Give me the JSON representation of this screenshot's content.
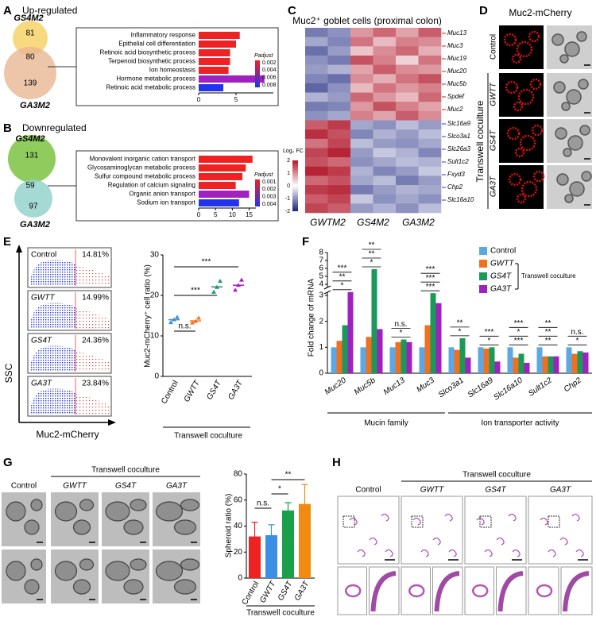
{
  "figure_labels": [
    "A",
    "B",
    "C",
    "D",
    "E",
    "F",
    "G",
    "H"
  ],
  "panel_a": {
    "title": "Up-regulated",
    "venn": {
      "sets": [
        "GS4M2",
        "GA3M2"
      ],
      "counts": [
        81,
        80,
        139
      ]
    }
  },
  "panel_b": {
    "title": "Downregulated",
    "venn": {
      "sets": [
        "GS4M2",
        "GA3M2"
      ],
      "counts": [
        131,
        59,
        97
      ]
    }
  },
  "panel_d": {
    "title": "Muc2-mCherry",
    "rows": [
      "Control",
      "GWTT",
      "GS4T",
      "GA3T"
    ],
    "group": "Transwell coculture"
  },
  "panel_e_flow": {
    "rows": [
      "Control",
      "GWTT",
      "GS4T",
      "GA3T"
    ],
    "percents": [
      "14.81%",
      "14.99%",
      "24.36%",
      "23.84%"
    ],
    "y_label": "SSC",
    "x_label": "Muc2-mCherry"
  },
  "panel_g_images": {
    "columns": [
      "Control",
      "GWTT",
      "GS4T",
      "GA3T"
    ],
    "group": "Transwell coculture"
  },
  "panel_h": {
    "columns": [
      "Control",
      "GWTT",
      "GS4T",
      "GA3T"
    ],
    "group": "Transwell coculture"
  },
  "chart_data": [
    {
      "type": "barh",
      "categories": [
        "Inflammatory response",
        "Epithelial cell differentiation",
        "Retinoic acid biosynthetic process",
        "Terpenoid biosynthetic process",
        "Ion homeostasis",
        "Hormone metabolic process",
        "Retinoic acid metabolic process"
      ],
      "values": [
        5.5,
        5,
        4.2,
        4.2,
        4,
        8.8,
        3.3
      ],
      "colors": [
        "#ee2222",
        "#ee2222",
        "#ee2222",
        "#ee2222",
        "#ee2222",
        "#a020c0",
        "#2233ee"
      ],
      "xlim": [
        0,
        10
      ],
      "xticks": [
        0,
        5
      ],
      "legend_title": "Padjust",
      "legend_ticks": [
        0.002,
        0.004,
        0.006,
        0.008
      ],
      "legend_colors": [
        "#ee2222",
        "#2233ee"
      ]
    },
    {
      "type": "barh",
      "categories": [
        "Monovalent inorganic cation transport",
        "Glycosaminoglycan metabolic process",
        "Sulfur compound metabolic process",
        "Regulation of calcium signaling",
        "Organic anion transport",
        "Sodium ion transport"
      ],
      "values": [
        16,
        14,
        13,
        11,
        15,
        12
      ],
      "colors": [
        "#ee2222",
        "#ee2222",
        "#ee2222",
        "#ee2222",
        "#a020c0",
        "#2233ee"
      ],
      "xlim": [
        0,
        17
      ],
      "xticks": [
        0,
        5,
        10,
        15
      ],
      "legend_title": "Padjust",
      "legend_ticks": [
        0.001,
        0.002,
        0.003,
        0.004
      ],
      "legend_colors": [
        "#ee2222",
        "#2233ee"
      ]
    },
    {
      "type": "heatmap",
      "title": "Muc2⁺ goblet cells (proximal colon)",
      "columns": [
        "GWTM2",
        "GS4M2",
        "GA3M2"
      ],
      "values": [
        [
          -1.2,
          -1.0,
          0.9,
          1.3,
          0.8,
          1.4
        ],
        [
          -0.8,
          -1.1,
          1.2,
          0.6,
          1.1,
          1.0
        ],
        [
          -1.3,
          -0.9,
          0.5,
          1.0,
          1.3,
          0.7
        ],
        [
          -1.0,
          -1.2,
          1.5,
          1.1,
          0.4,
          1.2
        ],
        [
          -0.9,
          -0.7,
          0.8,
          1.4,
          1.0,
          0.9
        ],
        [
          -1.1,
          -1.3,
          1.0,
          0.7,
          1.2,
          1.5
        ],
        [
          -1.4,
          -1.0,
          0.6,
          1.2,
          0.9,
          1.1
        ],
        [
          -0.7,
          -0.9,
          1.3,
          0.9,
          0.6,
          1.3
        ],
        [
          -1.2,
          -1.1,
          0.9,
          1.5,
          1.1,
          0.8
        ],
        [
          -1.0,
          -0.8,
          1.1,
          0.8,
          1.4,
          1.0
        ],
        [
          1.4,
          1.7,
          -0.8,
          -1.0,
          -0.6,
          -0.9
        ],
        [
          1.8,
          1.5,
          -1.1,
          -0.7,
          -0.9,
          -0.6
        ],
        [
          1.2,
          1.6,
          -0.6,
          -0.9,
          -1.0,
          -0.8
        ],
        [
          1.6,
          1.9,
          -0.9,
          -0.5,
          -0.7,
          -1.1
        ],
        [
          1.5,
          1.3,
          -1.0,
          -0.8,
          -0.6,
          -0.7
        ],
        [
          1.9,
          1.7,
          -0.7,
          -1.1,
          -0.9,
          -0.5
        ],
        [
          1.3,
          1.5,
          -0.8,
          -0.6,
          -1.2,
          -0.9
        ],
        [
          1.7,
          1.8,
          -1.2,
          -0.9,
          -0.7,
          -0.8
        ],
        [
          1.4,
          1.6,
          -0.5,
          -1.0,
          -0.8,
          -1.0
        ],
        [
          1.6,
          1.4,
          -0.9,
          -0.7,
          -1.0,
          -0.6
        ]
      ],
      "genes_up": [
        "Muc13",
        "Muc3",
        "Muc19",
        "Muc20",
        "Muc5b",
        "Spdef",
        "Muc2"
      ],
      "genes_down": [
        "Slc16a9",
        "Slco3a1",
        "Slc26a3",
        "Sult1c2",
        "Fxyd3",
        "Chp2",
        "Slc16a10"
      ],
      "colorbar_label": "Log₂ FC",
      "clim": [
        -2,
        2
      ],
      "cticks": [
        2,
        1,
        0,
        -1,
        -2
      ],
      "colors": [
        "#1a237e",
        "#ffffff",
        "#b2182b"
      ]
    },
    {
      "type": "dot",
      "categories": [
        "Control",
        "GWTT",
        "GS4T",
        "GA3T"
      ],
      "values": [
        14.0,
        13.7,
        22.1,
        22.5
      ],
      "points": [
        [
          13.3,
          14.0,
          14.6
        ],
        [
          13.2,
          13.6,
          14.4
        ],
        [
          20.8,
          22.0,
          23.5
        ],
        [
          21.3,
          22.5,
          23.8
        ]
      ],
      "colors": [
        "#3b8fd6",
        "#f07020",
        "#1a9a6a",
        "#a020c0"
      ],
      "ylim": [
        0,
        30
      ],
      "yticks": [
        0,
        10,
        20,
        30
      ],
      "y_label": "Muc2-mCherry⁺ cell ratio (%)",
      "x_label": "Transwell coculture",
      "annotations": [
        "n.s.",
        "***",
        "***"
      ]
    },
    {
      "type": "grouped_bar",
      "categories": [
        "Muc20",
        "Muc5b",
        "Muc13",
        "Muc3",
        "Slco3a1",
        "Slc16a9",
        "Slc16a10",
        "Sult1c2",
        "Chp2"
      ],
      "series": [
        {
          "name": "Control",
          "color": "#5aa9e6",
          "values": [
            1.0,
            1.0,
            1.0,
            1.0,
            1.0,
            1.0,
            1.0,
            1.0,
            1.0
          ]
        },
        {
          "name": "GWTT",
          "color": "#f07020",
          "values": [
            1.25,
            1.4,
            1.2,
            1.85,
            0.9,
            0.95,
            0.6,
            0.65,
            0.75
          ]
        },
        {
          "name": "GS4T",
          "color": "#1a9a5a",
          "values": [
            1.85,
            5.9,
            1.3,
            3.2,
            1.35,
            1.0,
            0.75,
            0.65,
            0.85
          ]
        },
        {
          "name": "GA3T",
          "color": "#a020c0",
          "values": [
            3.3,
            1.7,
            1.2,
            2.7,
            0.6,
            0.45,
            0.4,
            0.65,
            0.8
          ]
        }
      ],
      "ylim": [
        0,
        8
      ],
      "yticks": [
        0,
        1,
        2,
        3,
        4,
        5,
        6,
        7,
        8
      ],
      "axis_break": [
        3,
        4
      ],
      "y_label": "Fold change of mRNA",
      "legend_group": "Transwell coculture",
      "groups": [
        "Mucin family",
        "Ion transporter activity"
      ],
      "annotations": [
        [
          "*",
          "**",
          "***"
        ],
        [
          "*",
          "**",
          "**"
        ],
        [
          "*",
          "n.s."
        ],
        [
          "***",
          "***",
          "***"
        ],
        [
          "*",
          "**"
        ],
        [
          "*",
          "***"
        ],
        [
          "***",
          "*",
          "***"
        ],
        [
          "**",
          "**",
          "**"
        ],
        [
          "*",
          "n.s."
        ]
      ]
    },
    {
      "type": "bar",
      "categories": [
        "Control",
        "GWTT",
        "GS4T",
        "GA3T"
      ],
      "values": [
        32,
        33,
        52,
        57
      ],
      "errors": [
        11,
        8,
        6,
        15
      ],
      "colors": [
        "#ee2222",
        "#3b8fe6",
        "#1aa04a",
        "#f08a10"
      ],
      "ylim": [
        0,
        80
      ],
      "yticks": [
        0,
        20,
        40,
        60,
        80
      ],
      "y_label": "Spheroid ratio (%)",
      "x_label": "Transwell coculture",
      "annotations": [
        "n.s.",
        "*",
        "**"
      ]
    }
  ]
}
